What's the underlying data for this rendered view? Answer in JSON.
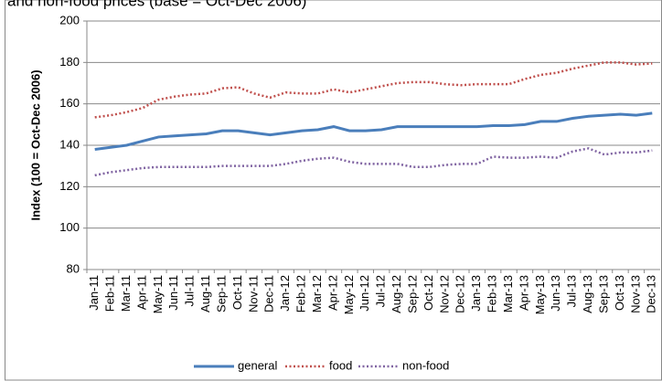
{
  "chart_data": {
    "type": "line",
    "title": "and non-food prices (base = Oct-Dec 2006)",
    "y_label": "Index (100 = Oct-Dec 2006)",
    "categories": [
      "Jan-11",
      "Feb-11",
      "Mar-11",
      "Apr-11",
      "May-11",
      "Jun-11",
      "Jul-11",
      "Aug-11",
      "Sep-11",
      "Oct-11",
      "Nov-11",
      "Dec-11",
      "Jan-12",
      "Feb-12",
      "Mar-12",
      "Apr-12",
      "May-12",
      "Jun-12",
      "Jul-12",
      "Aug-12",
      "Sep-12",
      "Oct-12",
      "Nov-12",
      "Dec-12",
      "Jan-13",
      "Feb-13",
      "Mar-13",
      "Apr-13",
      "May-13",
      "Jun-13",
      "Jul-13",
      "Aug-13",
      "Sep-13",
      "Oct-13",
      "Nov-13",
      "Dec-13"
    ],
    "series": [
      {
        "name": "general",
        "color": "#4a7ebb",
        "dash": "solid",
        "values": [
          138,
          139,
          140,
          142,
          144,
          144.5,
          145,
          145.5,
          147,
          147,
          146,
          145,
          146,
          147,
          147.5,
          149,
          147,
          147,
          147.5,
          149,
          149,
          149,
          149,
          149,
          149,
          149.5,
          149.5,
          150,
          151.5,
          151.5,
          153,
          154,
          154.5,
          155,
          154.5,
          155.5
        ]
      },
      {
        "name": "food",
        "color": "#c0504d",
        "dash": "dotted",
        "values": [
          153.5,
          154.5,
          156,
          158,
          162,
          163.5,
          164.5,
          165,
          167.5,
          168,
          165,
          163,
          165.5,
          165,
          165,
          167,
          165.5,
          167,
          168.5,
          170,
          170.5,
          170.5,
          169.5,
          169,
          169.5,
          169.5,
          169.5,
          172,
          174,
          175,
          177,
          178.5,
          180,
          180,
          179,
          179.5
        ]
      },
      {
        "name": "non-food",
        "color": "#8064a2",
        "dash": "dotted",
        "values": [
          125.5,
          127,
          128,
          129,
          129.5,
          129.5,
          129.5,
          129.5,
          130,
          130,
          130,
          130,
          131,
          132.5,
          133.5,
          134,
          132,
          131,
          131,
          131,
          129.5,
          129.5,
          130.5,
          131,
          131,
          134.5,
          134,
          134,
          134.5,
          134,
          137,
          138.5,
          135.5,
          136.5,
          136.5,
          137.5
        ]
      }
    ],
    "ylim": [
      80,
      200
    ],
    "yticks": [
      80,
      100,
      120,
      140,
      160,
      180,
      200
    ],
    "grid": true,
    "legend": "bottom"
  }
}
